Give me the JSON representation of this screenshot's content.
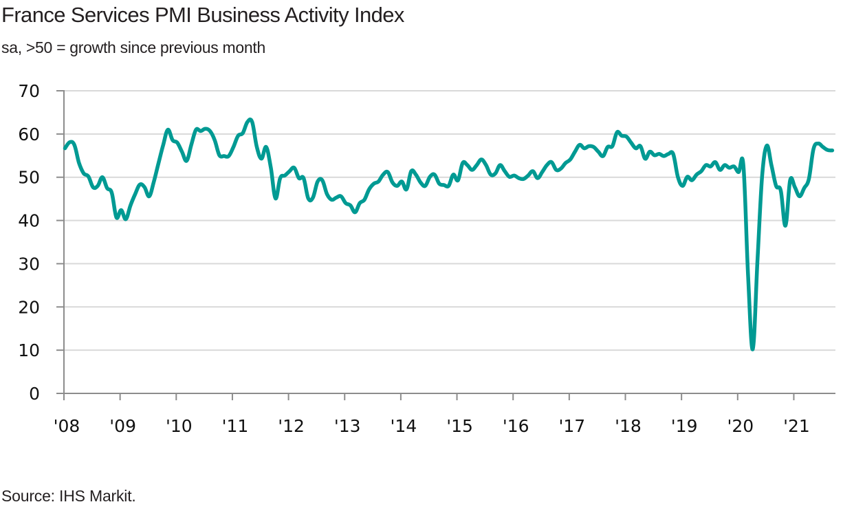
{
  "chart_data": {
    "type": "line",
    "title": "France Services PMI Business Activity Index",
    "subtitle": "sa, >50 = growth since previous month",
    "source": "Source: IHS Markit.",
    "xlabel": "",
    "ylabel": "",
    "ylim": [
      0,
      70
    ],
    "yticks": [
      0,
      10,
      20,
      30,
      40,
      50,
      60,
      70
    ],
    "ytick_labels": [
      "0",
      "10",
      "20",
      "30",
      "40",
      "50",
      "60",
      "70"
    ],
    "xtick_labels": [
      "'08",
      "'09",
      "'10",
      "'11",
      "'12",
      "'13",
      "'14",
      "'15",
      "'16",
      "'17",
      "'18",
      "'19",
      "'20",
      "'21"
    ],
    "x_start": "2008-01",
    "x_frequency": "monthly",
    "grid": true,
    "legend": "none",
    "series": [
      {
        "name": "France Services PMI Business Activity Index",
        "color": "#009a93",
        "x": [
          "2008-01",
          "2008-02",
          "2008-03",
          "2008-04",
          "2008-05",
          "2008-06",
          "2008-07",
          "2008-08",
          "2008-09",
          "2008-10",
          "2008-11",
          "2008-12",
          "2009-01",
          "2009-02",
          "2009-03",
          "2009-04",
          "2009-05",
          "2009-06",
          "2009-07",
          "2009-08",
          "2009-09",
          "2009-10",
          "2009-11",
          "2009-12",
          "2010-01",
          "2010-02",
          "2010-03",
          "2010-04",
          "2010-05",
          "2010-06",
          "2010-07",
          "2010-08",
          "2010-09",
          "2010-10",
          "2010-11",
          "2010-12",
          "2011-01",
          "2011-02",
          "2011-03",
          "2011-04",
          "2011-05",
          "2011-06",
          "2011-07",
          "2011-08",
          "2011-09",
          "2011-10",
          "2011-11",
          "2011-12",
          "2012-01",
          "2012-02",
          "2012-03",
          "2012-04",
          "2012-05",
          "2012-06",
          "2012-07",
          "2012-08",
          "2012-09",
          "2012-10",
          "2012-11",
          "2012-12",
          "2013-01",
          "2013-02",
          "2013-03",
          "2013-04",
          "2013-05",
          "2013-06",
          "2013-07",
          "2013-08",
          "2013-09",
          "2013-10",
          "2013-11",
          "2013-12",
          "2014-01",
          "2014-02",
          "2014-03",
          "2014-04",
          "2014-05",
          "2014-06",
          "2014-07",
          "2014-08",
          "2014-09",
          "2014-10",
          "2014-11",
          "2014-12",
          "2015-01",
          "2015-02",
          "2015-03",
          "2015-04",
          "2015-05",
          "2015-06",
          "2015-07",
          "2015-08",
          "2015-09",
          "2015-10",
          "2015-11",
          "2015-12",
          "2016-01",
          "2016-02",
          "2016-03",
          "2016-04",
          "2016-05",
          "2016-06",
          "2016-07",
          "2016-08",
          "2016-09",
          "2016-10",
          "2016-11",
          "2016-12",
          "2017-01",
          "2017-02",
          "2017-03",
          "2017-04",
          "2017-05",
          "2017-06",
          "2017-07",
          "2017-08",
          "2017-09",
          "2017-10",
          "2017-11",
          "2017-12",
          "2018-01",
          "2018-02",
          "2018-03",
          "2018-04",
          "2018-05",
          "2018-06",
          "2018-07",
          "2018-08",
          "2018-09",
          "2018-10",
          "2018-11",
          "2018-12",
          "2019-01",
          "2019-02",
          "2019-03",
          "2019-04",
          "2019-05",
          "2019-06",
          "2019-07",
          "2019-08",
          "2019-09",
          "2019-10",
          "2019-11",
          "2019-12",
          "2020-01",
          "2020-02",
          "2020-03",
          "2020-04",
          "2020-05",
          "2020-06",
          "2020-07",
          "2020-08",
          "2020-09",
          "2020-10",
          "2020-11",
          "2020-12",
          "2021-01",
          "2021-02",
          "2021-03",
          "2021-04",
          "2021-05",
          "2021-06",
          "2021-07",
          "2021-08",
          "2021-09"
        ],
        "values": [
          56.7,
          58.1,
          57.5,
          53.3,
          50.9,
          50.2,
          47.7,
          48.0,
          50.0,
          47.5,
          46.4,
          40.7,
          42.4,
          40.3,
          43.5,
          46.1,
          48.3,
          47.7,
          45.6,
          49.0,
          53.3,
          57.5,
          61.0,
          58.6,
          58.0,
          55.9,
          53.8,
          57.5,
          61.0,
          60.7,
          61.2,
          60.7,
          58.6,
          55.1,
          54.9,
          54.9,
          57.0,
          59.6,
          60.2,
          62.8,
          62.8,
          57.0,
          54.3,
          57.0,
          52.2,
          45.1,
          49.8,
          50.4,
          51.4,
          52.2,
          49.8,
          49.8,
          45.1,
          45.3,
          49.0,
          49.3,
          46.1,
          44.8,
          45.3,
          45.6,
          44.0,
          43.5,
          41.9,
          44.0,
          44.8,
          47.2,
          48.5,
          49.0,
          50.6,
          51.2,
          48.8,
          48.0,
          49.0,
          47.2,
          51.4,
          50.6,
          48.8,
          48.0,
          50.1,
          50.6,
          48.5,
          48.2,
          48.0,
          50.6,
          49.3,
          53.3,
          52.8,
          51.7,
          52.8,
          54.1,
          52.8,
          50.6,
          50.9,
          52.8,
          51.4,
          50.1,
          50.4,
          49.8,
          49.6,
          50.4,
          51.4,
          49.8,
          51.2,
          52.8,
          53.5,
          51.7,
          52.0,
          53.3,
          54.1,
          55.9,
          57.5,
          56.7,
          57.2,
          57.0,
          55.9,
          54.9,
          57.0,
          57.2,
          60.4,
          59.6,
          59.4,
          58.0,
          56.7,
          57.2,
          54.3,
          55.9,
          55.1,
          55.4,
          54.9,
          55.4,
          55.4,
          50.1,
          48.0,
          50.1,
          49.3,
          50.6,
          51.4,
          52.8,
          52.5,
          53.5,
          51.7,
          52.8,
          52.2,
          52.5,
          51.2,
          52.8,
          27.4,
          10.2,
          30.4,
          50.1,
          57.3,
          52.8,
          48.0,
          46.9,
          38.8,
          49.3,
          47.7,
          45.6,
          47.5,
          49.6,
          56.6,
          57.8,
          57.0,
          56.3,
          56.2
        ]
      }
    ]
  }
}
